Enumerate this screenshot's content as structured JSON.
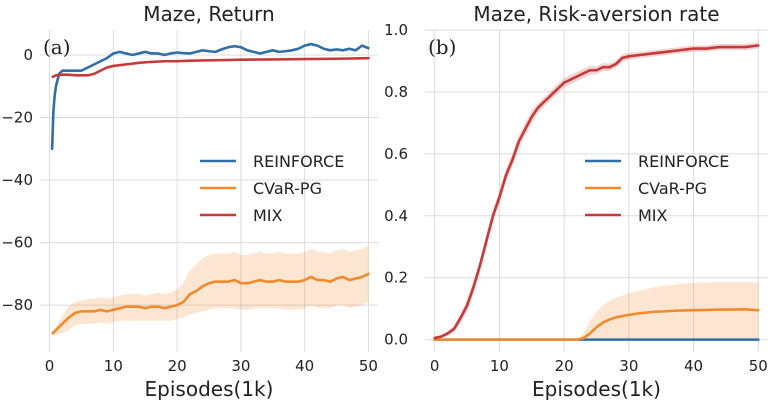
{
  "chart_data": [
    {
      "type": "line",
      "title": "Maze, Return",
      "panel_label": "(a)",
      "xlabel": "Episodes(1k)",
      "ylabel": "",
      "xlim": [
        -1.5,
        51.5
      ],
      "ylim": [
        -95,
        8
      ],
      "xticks": [
        0,
        10,
        20,
        30,
        40,
        50
      ],
      "yticks": [
        0,
        -20,
        -40,
        -60,
        -80
      ],
      "ytick_labels": [
        "0",
        "−20",
        "−40",
        "−60",
        "−80"
      ],
      "grid": true,
      "legend_position": "center-right",
      "series": [
        {
          "name": "REINFORCE",
          "color": "#2f6fa8",
          "x": [
            0.4,
            0.6,
            0.8,
            1,
            1.5,
            2,
            3,
            4,
            5,
            6,
            7,
            8,
            9,
            10,
            11,
            12,
            13,
            14,
            15,
            16,
            17,
            18,
            19,
            20,
            21,
            22,
            23,
            24,
            25,
            26,
            27,
            28,
            29,
            30,
            31,
            32,
            33,
            34,
            35,
            36,
            37,
            38,
            39,
            40,
            41,
            42,
            43,
            44,
            45,
            46,
            47,
            48,
            49,
            50
          ],
          "y": [
            -30,
            -18,
            -13,
            -10,
            -6,
            -5,
            -5,
            -5,
            -5,
            -4,
            -3,
            -2,
            -1,
            0.5,
            1,
            0.5,
            0,
            0.5,
            1,
            0.5,
            0.5,
            0,
            0.5,
            0.8,
            0.6,
            0.5,
            1,
            1.5,
            1.2,
            1,
            1.8,
            2.5,
            2.8,
            2.5,
            1.5,
            1,
            0.5,
            1,
            1.5,
            1,
            1.2,
            1.5,
            2,
            3,
            3.5,
            3,
            2,
            1.5,
            1.8,
            1.5,
            2,
            1.5,
            3,
            2.2
          ],
          "band": null
        },
        {
          "name": "CVaR-PG",
          "color": "#f08a2c",
          "x": [
            0.5,
            1,
            2,
            3,
            4,
            5,
            6,
            7,
            8,
            9,
            10,
            11,
            12,
            13,
            14,
            15,
            16,
            17,
            18,
            19,
            20,
            21,
            22,
            23,
            24,
            25,
            26,
            27,
            28,
            29,
            30,
            31,
            32,
            33,
            34,
            35,
            36,
            37,
            38,
            39,
            40,
            41,
            42,
            43,
            44,
            45,
            46,
            47,
            48,
            49,
            50
          ],
          "y": [
            -89,
            -88,
            -86,
            -84,
            -82.5,
            -82,
            -82,
            -82,
            -81.5,
            -82,
            -81.5,
            -81,
            -80.5,
            -80.5,
            -80.5,
            -81,
            -80.5,
            -80.5,
            -81,
            -80.5,
            -80,
            -79,
            -76.5,
            -75.5,
            -74,
            -73,
            -72.5,
            -72.5,
            -72.5,
            -72,
            -73,
            -73,
            -72.5,
            -72,
            -72.5,
            -72.5,
            -72,
            -72.5,
            -72.5,
            -72.5,
            -72,
            -71,
            -72,
            -72,
            -72.5,
            -71.5,
            -71,
            -72,
            -71.5,
            -71,
            -70
          ],
          "band": {
            "lower": [
              -90,
              -89.5,
              -89,
              -88,
              -86.5,
              -86,
              -86,
              -86,
              -85.5,
              -86,
              -85.5,
              -85,
              -85,
              -85,
              -85,
              -85,
              -85,
              -85,
              -85,
              -85,
              -84.5,
              -84,
              -83,
              -82.5,
              -82,
              -81.5,
              -81,
              -81,
              -81,
              -81,
              -81.5,
              -81.5,
              -81,
              -81,
              -81,
              -81,
              -81,
              -81.5,
              -81.5,
              -81.5,
              -81,
              -80,
              -81,
              -81,
              -81,
              -80,
              -80,
              -81,
              -80.5,
              -80,
              -79
            ],
            "upper": [
              -88,
              -87,
              -83.5,
              -80.5,
              -79,
              -78.5,
              -78,
              -78,
              -77.5,
              -78,
              -77.5,
              -77,
              -76.5,
              -76.5,
              -76.5,
              -77,
              -76.5,
              -76,
              -76.5,
              -76,
              -75,
              -73,
              -69,
              -67,
              -65,
              -64,
              -63.5,
              -63.5,
              -63.5,
              -63,
              -64,
              -64,
              -63.5,
              -63,
              -63.5,
              -63.5,
              -63,
              -63.5,
              -63.5,
              -63.5,
              -63,
              -62,
              -63,
              -63,
              -63.5,
              -62.5,
              -62,
              -63,
              -62.5,
              -62,
              -61
            ]
          }
        },
        {
          "name": "MIX",
          "color": "#c8393a",
          "x": [
            0.5,
            1,
            2,
            3,
            4,
            5,
            6,
            7,
            8,
            9,
            10,
            12,
            14,
            16,
            18,
            20,
            22,
            25,
            28,
            30,
            35,
            40,
            45,
            50
          ],
          "y": [
            -7,
            -6.5,
            -6.3,
            -6.3,
            -6.5,
            -6.5,
            -6.5,
            -6,
            -5,
            -4,
            -3.5,
            -3,
            -2.5,
            -2.2,
            -2,
            -2,
            -1.8,
            -1.7,
            -1.6,
            -1.5,
            -1.4,
            -1.3,
            -1.2,
            -1
          ],
          "band": null
        }
      ]
    },
    {
      "type": "line",
      "title": "Maze, Risk-aversion rate",
      "panel_label": "(b)",
      "xlabel": "Episodes(1k)",
      "ylabel": "",
      "xlim": [
        -1.5,
        51.5
      ],
      "ylim": [
        -0.04,
        1.0
      ],
      "xticks": [
        0,
        10,
        20,
        30,
        40,
        50
      ],
      "yticks": [
        0.0,
        0.2,
        0.4,
        0.6,
        0.8,
        1.0
      ],
      "ytick_labels": [
        "0.0",
        "0.2",
        "0.4",
        "0.6",
        "0.8",
        "1.0"
      ],
      "grid": true,
      "legend_position": "center-right",
      "series": [
        {
          "name": "REINFORCE",
          "color": "#2f6fa8",
          "x": [
            0,
            50
          ],
          "y": [
            0.0,
            0.0
          ],
          "band": null
        },
        {
          "name": "CVaR-PG",
          "color": "#f08a2c",
          "x": [
            0,
            20,
            22,
            23,
            24,
            25,
            26,
            27,
            28,
            30,
            32,
            34,
            36,
            38,
            40,
            42,
            44,
            46,
            48,
            50
          ],
          "y": [
            0.0,
            0.0,
            0.0,
            0.005,
            0.02,
            0.04,
            0.055,
            0.065,
            0.072,
            0.08,
            0.086,
            0.09,
            0.092,
            0.094,
            0.095,
            0.096,
            0.097,
            0.097,
            0.098,
            0.095
          ],
          "band": {
            "lower": [
              0.0,
              0.0,
              0.0,
              0.0,
              0.0,
              0.0,
              0.0,
              0.0,
              0.0,
              0.0,
              0.0,
              0.0,
              0.0,
              0.0,
              0.0,
              0.0,
              0.0,
              0.0,
              0.0,
              0.0
            ],
            "upper": [
              0.0,
              0.0,
              0.0,
              0.02,
              0.06,
              0.09,
              0.11,
              0.125,
              0.135,
              0.15,
              0.16,
              0.17,
              0.175,
              0.18,
              0.183,
              0.185,
              0.186,
              0.186,
              0.186,
              0.183
            ]
          }
        },
        {
          "name": "MIX",
          "color": "#c8393a",
          "x": [
            0,
            1,
            2,
            3,
            4,
            5,
            6,
            7,
            8,
            9,
            10,
            11,
            12,
            13,
            14,
            15,
            16,
            17,
            18,
            19,
            20,
            21,
            22,
            23,
            24,
            25,
            26,
            27,
            28,
            29,
            30,
            32,
            34,
            36,
            38,
            40,
            42,
            44,
            46,
            48,
            50
          ],
          "y": [
            0.005,
            0.01,
            0.02,
            0.035,
            0.07,
            0.11,
            0.17,
            0.24,
            0.32,
            0.4,
            0.46,
            0.53,
            0.58,
            0.64,
            0.68,
            0.72,
            0.75,
            0.77,
            0.79,
            0.81,
            0.83,
            0.84,
            0.85,
            0.86,
            0.87,
            0.87,
            0.88,
            0.88,
            0.89,
            0.91,
            0.915,
            0.92,
            0.925,
            0.93,
            0.935,
            0.94,
            0.94,
            0.945,
            0.945,
            0.945,
            0.95
          ],
          "band": {
            "lower": [
              0.0,
              0.005,
              0.012,
              0.025,
              0.055,
              0.09,
              0.15,
              0.22,
              0.3,
              0.38,
              0.44,
              0.51,
              0.56,
              0.62,
              0.66,
              0.7,
              0.735,
              0.755,
              0.775,
              0.795,
              0.815,
              0.825,
              0.835,
              0.845,
              0.855,
              0.857,
              0.867,
              0.868,
              0.878,
              0.898,
              0.904,
              0.91,
              0.915,
              0.92,
              0.925,
              0.93,
              0.93,
              0.935,
              0.935,
              0.935,
              0.94
            ],
            "upper": [
              0.01,
              0.015,
              0.028,
              0.045,
              0.085,
              0.13,
              0.19,
              0.26,
              0.34,
              0.42,
              0.48,
              0.55,
              0.6,
              0.66,
              0.7,
              0.74,
              0.765,
              0.785,
              0.805,
              0.825,
              0.845,
              0.855,
              0.865,
              0.875,
              0.885,
              0.883,
              0.893,
              0.892,
              0.902,
              0.922,
              0.926,
              0.93,
              0.935,
              0.94,
              0.945,
              0.95,
              0.95,
              0.955,
              0.955,
              0.955,
              0.96
            ]
          }
        }
      ]
    }
  ]
}
